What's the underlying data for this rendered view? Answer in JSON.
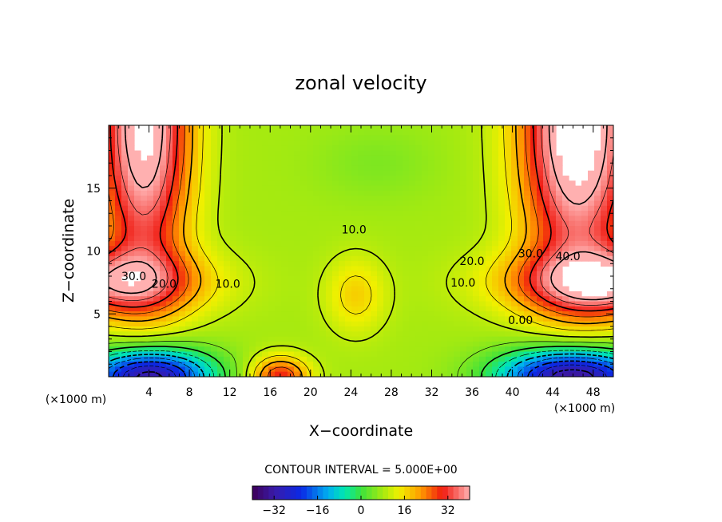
{
  "chart_data": {
    "type": "heatmap",
    "title": "zonal velocity",
    "xlabel": "X−coordinate",
    "ylabel": "Z−coordinate",
    "x_unit_left": "(×1000 m)",
    "x_unit_right": "(×1000 m)",
    "xlim": [
      0,
      50
    ],
    "ylim": [
      0,
      20
    ],
    "x_ticks": [
      4,
      8,
      12,
      16,
      20,
      24,
      28,
      32,
      36,
      40,
      44,
      48
    ],
    "x_tick_labels": [
      "4",
      "8",
      "12",
      "16",
      "20",
      "24",
      "28",
      "32",
      "36",
      "40",
      "44",
      "48"
    ],
    "y_ticks": [
      5,
      10,
      15
    ],
    "y_tick_labels": [
      "5",
      "10",
      "15"
    ],
    "contour_interval_text": "CONTOUR INTERVAL = 5.000E+00",
    "contour_labels": [
      {
        "text": "30.0",
        "x": 2.5,
        "y": 8.0
      },
      {
        "text": "20.0",
        "x": 5.5,
        "y": 7.4
      },
      {
        "text": "10.0",
        "x": 11.8,
        "y": 7.4
      },
      {
        "text": "10.0",
        "x": 24.3,
        "y": 11.7
      },
      {
        "text": "20.0",
        "x": 36.0,
        "y": 9.2
      },
      {
        "text": "10.0",
        "x": 35.1,
        "y": 7.5
      },
      {
        "text": "30.0",
        "x": 41.8,
        "y": 9.8
      },
      {
        "text": "40.0",
        "x": 45.5,
        "y": 9.6
      },
      {
        "text": "0.00",
        "x": 40.8,
        "y": 4.5
      }
    ],
    "colorbar": {
      "range": [
        -40,
        40
      ],
      "ticks": [
        -32,
        -16,
        0,
        16,
        32
      ],
      "tick_labels": [
        "−32",
        "−16",
        "0",
        "16",
        "32"
      ]
    },
    "fields": {
      "base": 8,
      "blobs": [
        {
          "x": 3.5,
          "y": 20,
          "sx": 4.5,
          "sy": 12,
          "a": 38
        },
        {
          "x": 46.5,
          "y": 20,
          "sx": 5.5,
          "sy": 12,
          "a": 42
        },
        {
          "x": 0,
          "y": 7.5,
          "sx": 9,
          "sy": 2.6,
          "a": 26
        },
        {
          "x": 50,
          "y": 7.5,
          "sx": 10,
          "sy": 2.6,
          "a": 30
        },
        {
          "x": 4,
          "y": 0,
          "sx": 6,
          "sy": 2.2,
          "a": -42
        },
        {
          "x": 46,
          "y": 0,
          "sx": 7,
          "sy": 2.2,
          "a": -44
        },
        {
          "x": 17,
          "y": 0,
          "sx": 2.8,
          "sy": 1.6,
          "a": 22
        },
        {
          "x": 24.5,
          "y": 6.5,
          "sx": 3,
          "sy": 3,
          "a": 9
        },
        {
          "x": 26.5,
          "y": 17,
          "sx": 6,
          "sy": 3,
          "a": -3
        }
      ]
    }
  }
}
